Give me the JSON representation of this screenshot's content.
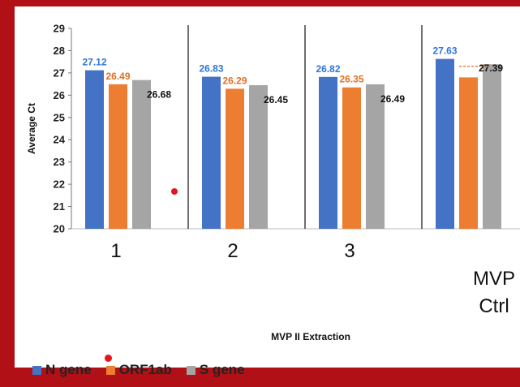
{
  "chart_data": {
    "type": "bar",
    "ylabel": "Average Ct",
    "xlabel": "MVP II Extraction",
    "ylim": [
      20,
      29
    ],
    "yticks": [
      20,
      21,
      22,
      23,
      24,
      25,
      26,
      27,
      28,
      29
    ],
    "categories": [
      "1",
      "2",
      "3",
      "MVP Ctrl"
    ],
    "series": [
      {
        "name": "N gene",
        "color": "#4472c4",
        "label_color": "#2f75d6",
        "values": [
          27.12,
          26.83,
          26.82,
          27.63
        ],
        "labels": [
          "27.12",
          "26.83",
          "26.82",
          "27.63"
        ]
      },
      {
        "name": "ORF1ab",
        "color": "#ed7d31",
        "label_color": "#e07021",
        "values": [
          26.49,
          26.29,
          26.35,
          26.8
        ],
        "labels": [
          "26.49",
          "26.29",
          "26.35",
          ""
        ]
      },
      {
        "name": "S gene",
        "color": "#a5a5a5",
        "label_color": "#111111",
        "values": [
          26.68,
          26.45,
          26.49,
          27.39
        ],
        "labels": [
          "26.68",
          "26.45",
          "26.49",
          "27.39"
        ]
      }
    ],
    "grid": false,
    "legend_position": "bottom-left"
  },
  "marker_color": "#e8141b"
}
